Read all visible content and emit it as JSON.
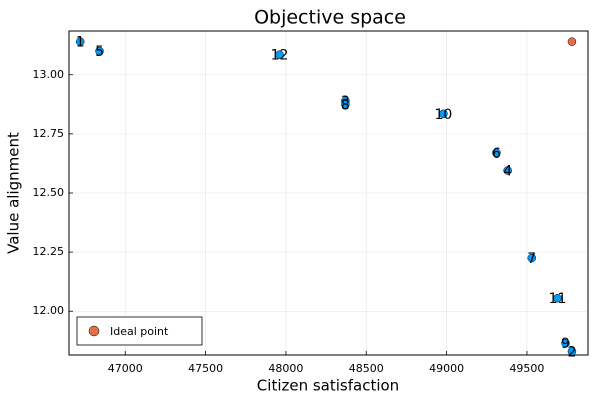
{
  "chart_data": {
    "type": "scatter",
    "title": "Objective space",
    "xlabel": "Citizen satisfaction",
    "ylabel": "Value alignment",
    "xlim": [
      46650,
      49880
    ],
    "ylim": [
      11.815,
      13.185
    ],
    "xticks": [
      47000,
      47500,
      48000,
      48500,
      49000,
      49500
    ],
    "xtick_labels": [
      "47000",
      "47500",
      "48000",
      "48500",
      "49000",
      "49500"
    ],
    "yticks": [
      12.0,
      12.25,
      12.5,
      12.75,
      13.0
    ],
    "ytick_labels": [
      "12.00",
      "12.25",
      "12.50",
      "12.75",
      "13.00"
    ],
    "grid": true,
    "legend_position": "bottom-left",
    "series": [
      {
        "color": "#009AFA",
        "points": [
          {
            "label": "1",
            "x": 46720,
            "y": 13.14
          },
          {
            "label": "5",
            "x": 46840,
            "y": 13.1
          },
          {
            "label": "12",
            "x": 47960,
            "y": 13.085
          },
          {
            "label": "3",
            "x": 48370,
            "y": 12.89
          },
          {
            "label": "8",
            "x": 48370,
            "y": 12.875
          },
          {
            "label": "10",
            "x": 48980,
            "y": 12.835
          },
          {
            "label": "6",
            "x": 49310,
            "y": 12.67
          },
          {
            "label": "4",
            "x": 49380,
            "y": 12.595
          },
          {
            "label": "7",
            "x": 49530,
            "y": 12.225
          },
          {
            "label": "11",
            "x": 49690,
            "y": 12.055
          },
          {
            "label": "9",
            "x": 49740,
            "y": 11.865
          },
          {
            "label": "2",
            "x": 49780,
            "y": 11.83
          }
        ]
      },
      {
        "name": "Ideal point",
        "color": "#E26F46",
        "points": [
          {
            "label": "",
            "x": 49780,
            "y": 13.14
          }
        ]
      }
    ]
  }
}
